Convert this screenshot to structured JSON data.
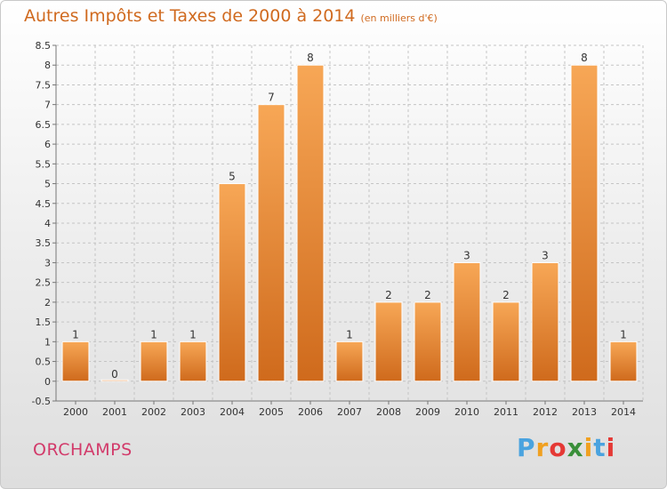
{
  "header": {
    "title": "Autres Impôts et Taxes de 2000 à 2014",
    "subtitle": "(en milliers d'€)"
  },
  "footer": {
    "city": "ORCHAMPS",
    "logo": {
      "letters": [
        "P",
        "r",
        "o",
        "x",
        "i",
        "t",
        "i"
      ],
      "colors": [
        "#4aa3df",
        "#f0a020",
        "#e53935",
        "#3a8f3a",
        "#f0a020",
        "#4aa3df",
        "#e53935"
      ]
    }
  },
  "chart_data": {
    "type": "bar",
    "title": "Autres Impôts et Taxes de 2000 à 2014",
    "subtitle": "(en milliers d'€)",
    "categories": [
      "2000",
      "2001",
      "2002",
      "2003",
      "2004",
      "2005",
      "2006",
      "2007",
      "2008",
      "2009",
      "2010",
      "2011",
      "2012",
      "2013",
      "2014"
    ],
    "values": [
      1,
      0,
      1,
      1,
      5,
      7,
      8,
      1,
      2,
      2,
      3,
      2,
      3,
      8,
      1
    ],
    "data_labels": [
      "1",
      "0",
      "1",
      "1",
      "5",
      "7",
      "8",
      "1",
      "2",
      "2",
      "3",
      "2",
      "3",
      "8",
      "1"
    ],
    "ylim": [
      -0.5,
      8.5
    ],
    "yticks": [
      "-0.5",
      "0",
      "0.5",
      "1",
      "1.5",
      "2",
      "2.5",
      "3",
      "3.5",
      "4",
      "4.5",
      "5",
      "5.5",
      "6",
      "6.5",
      "7",
      "7.5",
      "8",
      "8.5"
    ],
    "ytick_values": [
      -0.5,
      0,
      0.5,
      1,
      1.5,
      2,
      2.5,
      3,
      3.5,
      4,
      4.5,
      5,
      5.5,
      6,
      6.5,
      7,
      7.5,
      8,
      8.5
    ],
    "grid": true,
    "colors": {
      "bar_light": "#f7a756",
      "bar_dark": "#cf6a1c",
      "grid": "#c4c4c4",
      "axis": "#777777",
      "text": "#333333"
    }
  }
}
